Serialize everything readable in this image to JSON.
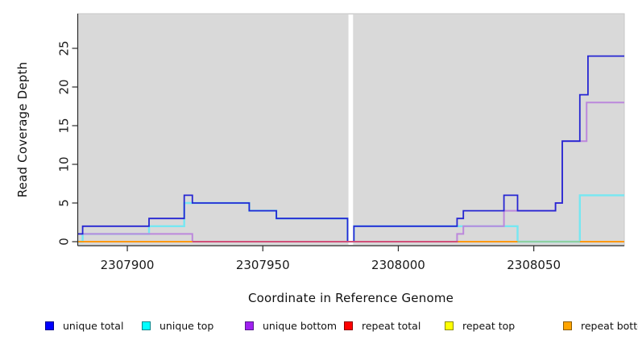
{
  "chart_data": {
    "type": "line",
    "subtype": "step-coverage",
    "xlabel": "Coordinate in Reference Genome",
    "ylabel": "Read Coverage Depth",
    "panel_bg": "#d9d9d9",
    "x_range": [
      2307881.7,
      2308083.4
    ],
    "y_range": [
      0,
      29.5
    ],
    "x_ticks": [
      2307900,
      2307950,
      2308000,
      2308050
    ],
    "y_ticks": [
      0,
      5,
      10,
      15,
      20,
      25
    ],
    "grid": false,
    "gap": {
      "from": 2307981.6,
      "to": 2307983.3
    },
    "series": [
      {
        "name": "repeat top",
        "color": "#f5f500",
        "width": 2,
        "points": [
          [
            2307881.7,
            0
          ]
        ]
      },
      {
        "name": "repeat total",
        "color": "#d14f78",
        "width": 2,
        "points": [
          [
            2307881.7,
            0
          ]
        ]
      },
      {
        "name": "repeat bottom",
        "color": "#ff9912",
        "width": 2,
        "points": [
          [
            2307881.7,
            0
          ]
        ]
      },
      {
        "name": "unique top",
        "color": "#76e7f2",
        "width": 2.4,
        "points": [
          [
            2307881.7,
            0
          ],
          [
            2307883.5,
            1
          ],
          [
            2307908,
            2
          ],
          [
            2307921,
            5
          ],
          [
            2307945,
            4
          ],
          [
            2307955,
            3
          ],
          [
            2307981.3,
            0
          ],
          [
            2307983.6,
            2
          ],
          [
            2308044,
            0
          ],
          [
            2308067,
            6
          ]
        ]
      },
      {
        "name": "unique bottom",
        "color": "#bc88dc",
        "width": 2,
        "points": [
          [
            2307881.7,
            1
          ],
          [
            2307924,
            0
          ],
          [
            2308021.7,
            1
          ],
          [
            2308024,
            2
          ],
          [
            2308039,
            4
          ],
          [
            2308058,
            5
          ],
          [
            2308060.5,
            13
          ],
          [
            2308069.5,
            18
          ]
        ]
      },
      {
        "name": "unique total",
        "color": "#2626d2",
        "width": 1.8,
        "points": [
          [
            2307881.7,
            1
          ],
          [
            2307883.5,
            2
          ],
          [
            2307908,
            3
          ],
          [
            2307921,
            6
          ],
          [
            2307924,
            5
          ],
          [
            2307945,
            4
          ],
          [
            2307955,
            3
          ],
          [
            2307981.3,
            0
          ],
          [
            2307983.6,
            2
          ],
          [
            2308021.7,
            3
          ],
          [
            2308024,
            4
          ],
          [
            2308039,
            6
          ],
          [
            2308044,
            4
          ],
          [
            2308058,
            5
          ],
          [
            2308060.5,
            13
          ],
          [
            2308067,
            19
          ],
          [
            2308070,
            24
          ]
        ]
      }
    ],
    "zero_segments": [
      {
        "from": 2307881.7,
        "to": 2307924,
        "color": "#ff9912"
      },
      {
        "from": 2307924,
        "to": 2308022,
        "color": "#d14f78"
      },
      {
        "from": 2308022,
        "to": 2308044,
        "color": "#ff9912"
      },
      {
        "from": 2308044,
        "to": 2308067,
        "color": "#8fd0a0"
      },
      {
        "from": 2308067,
        "to": 2308083.4,
        "color": "#ff9912"
      }
    ],
    "legend": [
      {
        "label": "unique total",
        "color": "#0000ff",
        "border": "#00008b"
      },
      {
        "label": "unique top",
        "color": "#00ffff",
        "border": "#00868b"
      },
      {
        "label": "unique bottom",
        "color": "#a020f0",
        "border": "#551a8b"
      },
      {
        "label": "repeat total",
        "color": "#ff0000",
        "border": "#8b0000"
      },
      {
        "label": "repeat top",
        "color": "#ffff00",
        "border": "#8b8b00"
      },
      {
        "label": "repeat bottom",
        "color": "#ffa500",
        "border": "#8b5a00"
      }
    ],
    "legend_position": "bottom"
  }
}
